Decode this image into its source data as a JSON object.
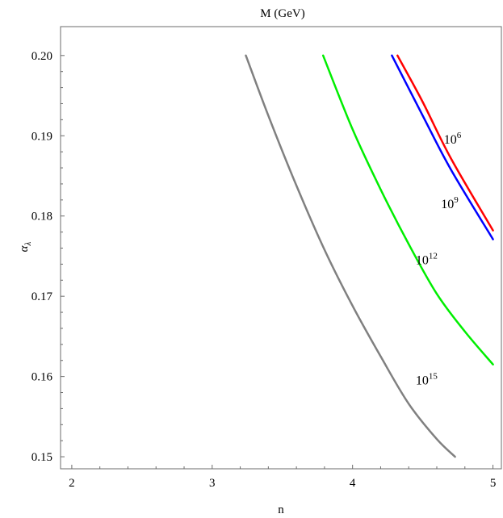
{
  "chart_data": {
    "type": "line",
    "title": "M (GeV)",
    "xlabel": "n",
    "ylabel": "α",
    "ylabel_subscript": "λ",
    "xlim": [
      1.92,
      5.06
    ],
    "ylim": [
      0.1485,
      0.2036
    ],
    "x_ticks": [
      2,
      3,
      4,
      5
    ],
    "x_tick_labels": [
      "2",
      "3",
      "4",
      "5"
    ],
    "y_ticks": [
      0.15,
      0.16,
      0.17,
      0.18,
      0.19,
      0.2
    ],
    "y_tick_labels": [
      "0.15",
      "0.16",
      "0.17",
      "0.18",
      "0.19",
      "0.20"
    ],
    "grid": false,
    "series": [
      {
        "name": "10^6",
        "label_base": "10",
        "label_exp": "6",
        "color": "#ff0000",
        "label_at": [
          4.65,
          0.189
        ],
        "x": [
          4.32,
          4.5,
          4.7,
          5.0
        ],
        "y": [
          0.2,
          0.1942,
          0.1872,
          0.1782
        ]
      },
      {
        "name": "10^9",
        "label_base": "10",
        "label_exp": "9",
        "color": "#0000ff",
        "label_at": [
          4.63,
          0.181
        ],
        "x": [
          4.28,
          4.5,
          4.7,
          5.0
        ],
        "y": [
          0.2,
          0.1925,
          0.1858,
          0.1771
        ]
      },
      {
        "name": "10^12",
        "label_base": "10",
        "label_exp": "12",
        "color": "#00ee00",
        "label_at": [
          4.45,
          0.174
        ],
        "x": [
          3.79,
          4.0,
          4.2,
          4.4,
          4.6,
          4.8,
          5.0
        ],
        "y": [
          0.2,
          0.1908,
          0.1833,
          0.1765,
          0.1703,
          0.1656,
          0.1615
        ]
      },
      {
        "name": "10^15",
        "label_base": "10",
        "label_exp": "15",
        "color": "#808080",
        "label_at": [
          4.45,
          0.159
        ],
        "x": [
          3.24,
          3.4,
          3.6,
          3.8,
          4.0,
          4.2,
          4.4,
          4.6,
          4.73
        ],
        "y": [
          0.2,
          0.1925,
          0.1838,
          0.1758,
          0.1688,
          0.1625,
          0.1566,
          0.1522,
          0.15
        ]
      }
    ]
  }
}
